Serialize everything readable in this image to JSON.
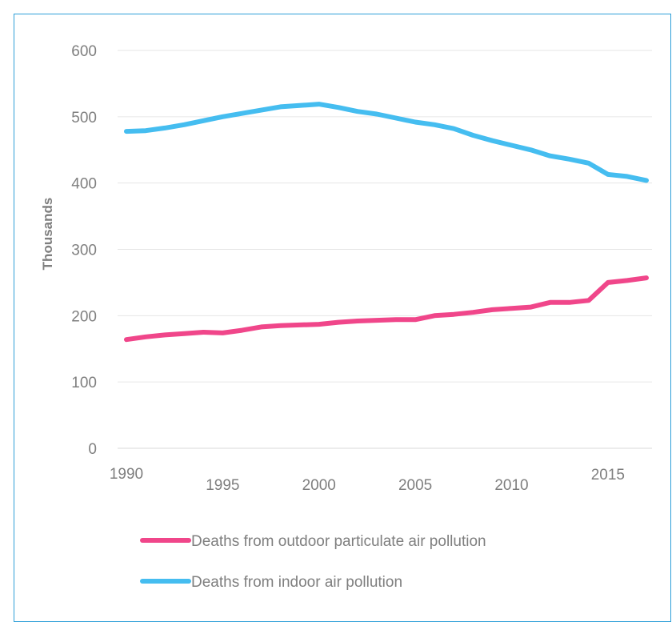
{
  "chart_data": {
    "type": "line",
    "title": "",
    "xlabel": "",
    "ylabel": "Thousands",
    "ylim": [
      0,
      600
    ],
    "xlim": [
      1990,
      2017
    ],
    "yticks": [
      0,
      100,
      200,
      300,
      400,
      500,
      600
    ],
    "xticks": [
      1990,
      1995,
      2000,
      2005,
      2010,
      2015
    ],
    "grid": "horizontal",
    "legend_position": "bottom",
    "x": [
      1990,
      1991,
      1992,
      1993,
      1994,
      1995,
      1996,
      1997,
      1998,
      1999,
      2000,
      2001,
      2002,
      2003,
      2004,
      2005,
      2006,
      2007,
      2008,
      2009,
      2010,
      2011,
      2012,
      2013,
      2014,
      2015,
      2016,
      2017
    ],
    "series": [
      {
        "name": "Deaths from outdoor particulate air pollution",
        "color": "#f0468a",
        "values": [
          164,
          168,
          171,
          173,
          175,
          174,
          178,
          183,
          185,
          186,
          187,
          190,
          192,
          193,
          194,
          194,
          200,
          202,
          205,
          209,
          211,
          213,
          220,
          220,
          223,
          250,
          253,
          257
        ]
      },
      {
        "name": "Deaths from indoor air pollution",
        "color": "#45bdf0",
        "values": [
          478,
          479,
          483,
          488,
          494,
          500,
          505,
          510,
          515,
          517,
          519,
          514,
          508,
          504,
          498,
          492,
          488,
          482,
          472,
          464,
          457,
          450,
          441,
          436,
          430,
          413,
          410,
          404
        ]
      }
    ]
  }
}
